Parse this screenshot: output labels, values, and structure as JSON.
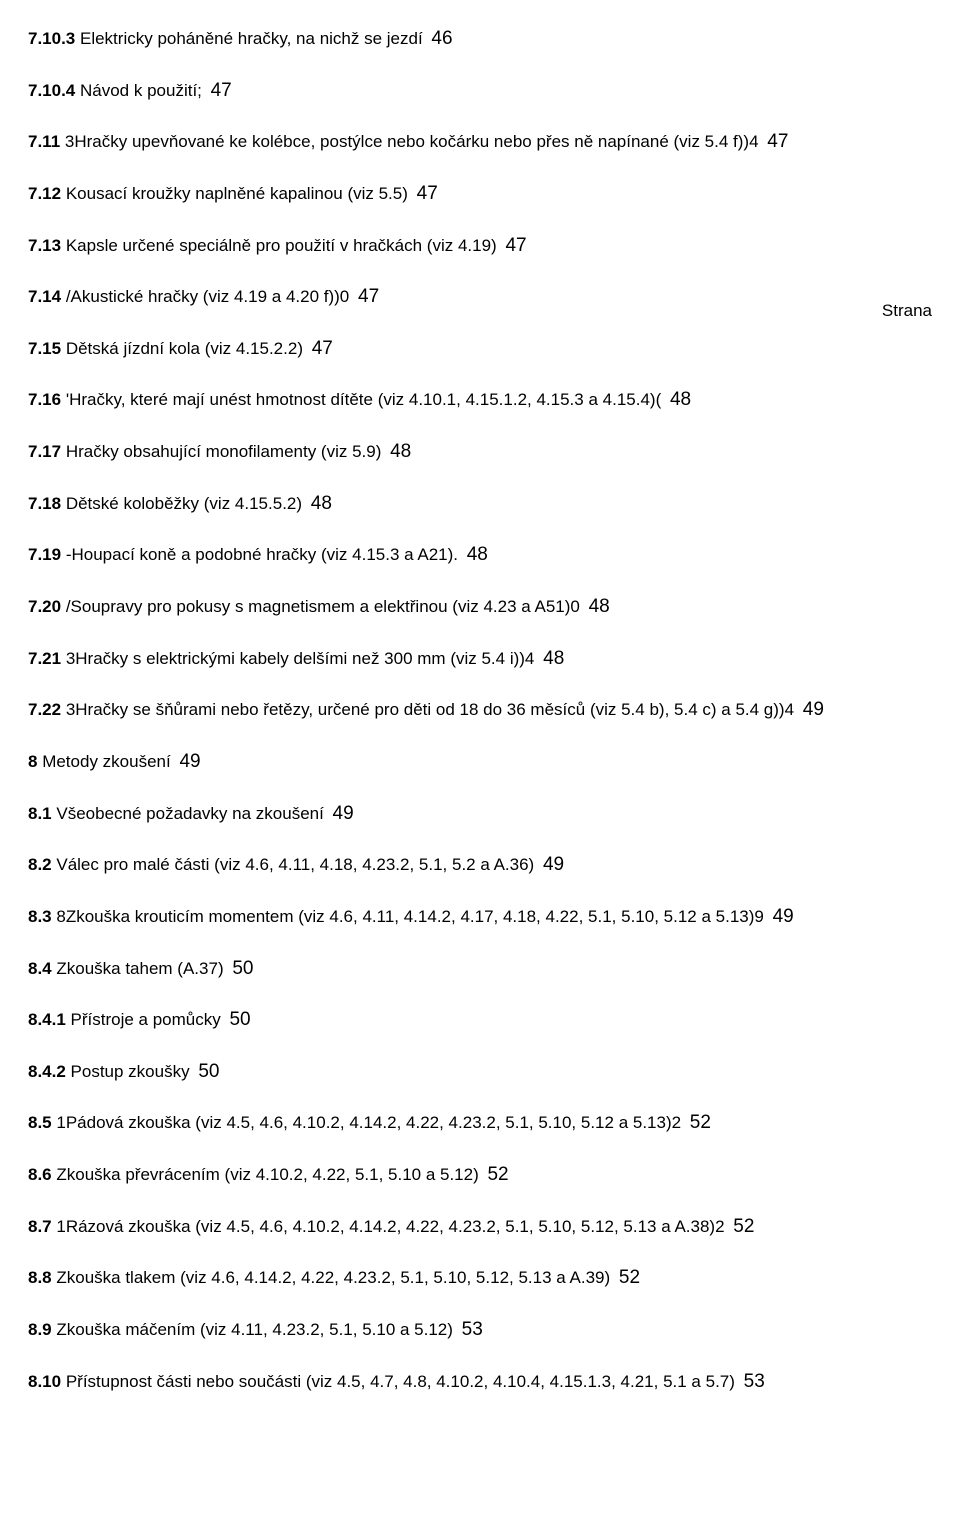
{
  "strana_label": "Strana",
  "entries": [
    {
      "num": "7.10.3",
      "text": " Elektricky poháněné hračky, na nichž se jezdí ",
      "page": "46"
    },
    {
      "num": "7.10.4",
      "text": " Návod k použití; ",
      "page": "47"
    },
    {
      "num": "7.11",
      "text": " 3Hračky upevňované ke kolébce, postýlce nebo kočárku nebo přes ně napínané (viz 5.4 f))4 ",
      "page": "47"
    },
    {
      "num": "7.12",
      "text": " Kousací kroužky naplněné kapalinou (viz 5.5) ",
      "page": "47"
    },
    {
      "num": "7.13",
      "text": " Kapsle určené speciálně pro použití v hračkách (viz 4.19) ",
      "page": "47"
    },
    {
      "num": "7.14",
      "text": " /Akustické hračky (viz 4.19 a 4.20 f))0 ",
      "page": "47"
    },
    {
      "num": "7.15",
      "text": " Dětská jízdní kola (viz 4.15.2.2) ",
      "page": "47"
    },
    {
      "num": "7.16",
      "text": " 'Hračky, které mají unést hmotnost dítěte (viz 4.10.1, 4.15.1.2, 4.15.3 a 4.15.4)( ",
      "page": "48"
    },
    {
      "num": "7.17",
      "text": " Hračky obsahující monofilamenty (viz 5.9) ",
      "page": "48"
    },
    {
      "num": "7.18",
      "text": " Dětské koloběžky (viz 4.15.5.2) ",
      "page": "48"
    },
    {
      "num": "7.19",
      "text": " -Houpací koně a podobné hračky (viz 4.15.3 a A21). ",
      "page": "48"
    },
    {
      "num": "7.20",
      "text": " /Soupravy pro pokusy s magnetismem a elektřinou (viz 4.23 a A51)0 ",
      "page": "48"
    },
    {
      "num": "7.21",
      "text": " 3Hračky s elektrickými kabely delšími než 300 mm (viz 5.4 i))4 ",
      "page": "48"
    },
    {
      "num": "7.22",
      "text": " 3Hračky se šňůrami nebo řetězy, určené pro děti od 18 do 36 měsíců (viz 5.4 b), 5.4 c) a 5.4 g))4 ",
      "page": "49"
    },
    {
      "num": "8",
      "text": " Metody zkoušení ",
      "page": "49"
    },
    {
      "num": "8.1",
      "text": " Všeobecné požadavky na zkoušení ",
      "page": "49"
    },
    {
      "num": "8.2",
      "text": " Válec pro malé části (viz 4.6, 4.11, 4.18, 4.23.2, 5.1, 5.2 a A.36) ",
      "page": "49"
    },
    {
      "num": "8.3",
      "text": " 8Zkouška krouticím momentem (viz 4.6, 4.11, 4.14.2, 4.17, 4.18, 4.22, 5.1, 5.10, 5.12 a 5.13)9 ",
      "page": "49"
    },
    {
      "num": "8.4",
      "text": " Zkouška tahem (A.37) ",
      "page": "50"
    },
    {
      "num": "8.4.1",
      "text": " Přístroje a pomůcky ",
      "page": "50"
    },
    {
      "num": "8.4.2",
      "text": " Postup zkoušky ",
      "page": "50"
    },
    {
      "num": "8.5",
      "text": " 1Pádová zkouška (viz 4.5, 4.6, 4.10.2, 4.14.2, 4.22, 4.23.2, 5.1, 5.10, 5.12 a 5.13)2 ",
      "page": "52"
    },
    {
      "num": "8.6",
      "text": " Zkouška převrácením (viz 4.10.2, 4.22, 5.1, 5.10 a 5.12) ",
      "page": "52"
    },
    {
      "num": "8.7",
      "text": " 1Rázová zkouška (viz 4.5, 4.6, 4.10.2, 4.14.2, 4.22, 4.23.2, 5.1, 5.10, 5.12, 5.13 a A.38)2 ",
      "page": "52"
    },
    {
      "num": "8.8",
      "text": " Zkouška tlakem (viz 4.6, 4.14.2, 4.22, 4.23.2, 5.1, 5.10, 5.12, 5.13 a A.39) ",
      "page": "52"
    },
    {
      "num": "8.9",
      "text": " Zkouška máčením (viz 4.11, 4.23.2, 5.1, 5.10 a 5.12) ",
      "page": "53"
    },
    {
      "num": "8.10",
      "text": " Přístupnost části nebo součásti (viz 4.5, 4.7, 4.8, 4.10.2, 4.10.4, 4.15.1.3, 4.21, 5.1 a 5.7) ",
      "page": "53"
    }
  ]
}
